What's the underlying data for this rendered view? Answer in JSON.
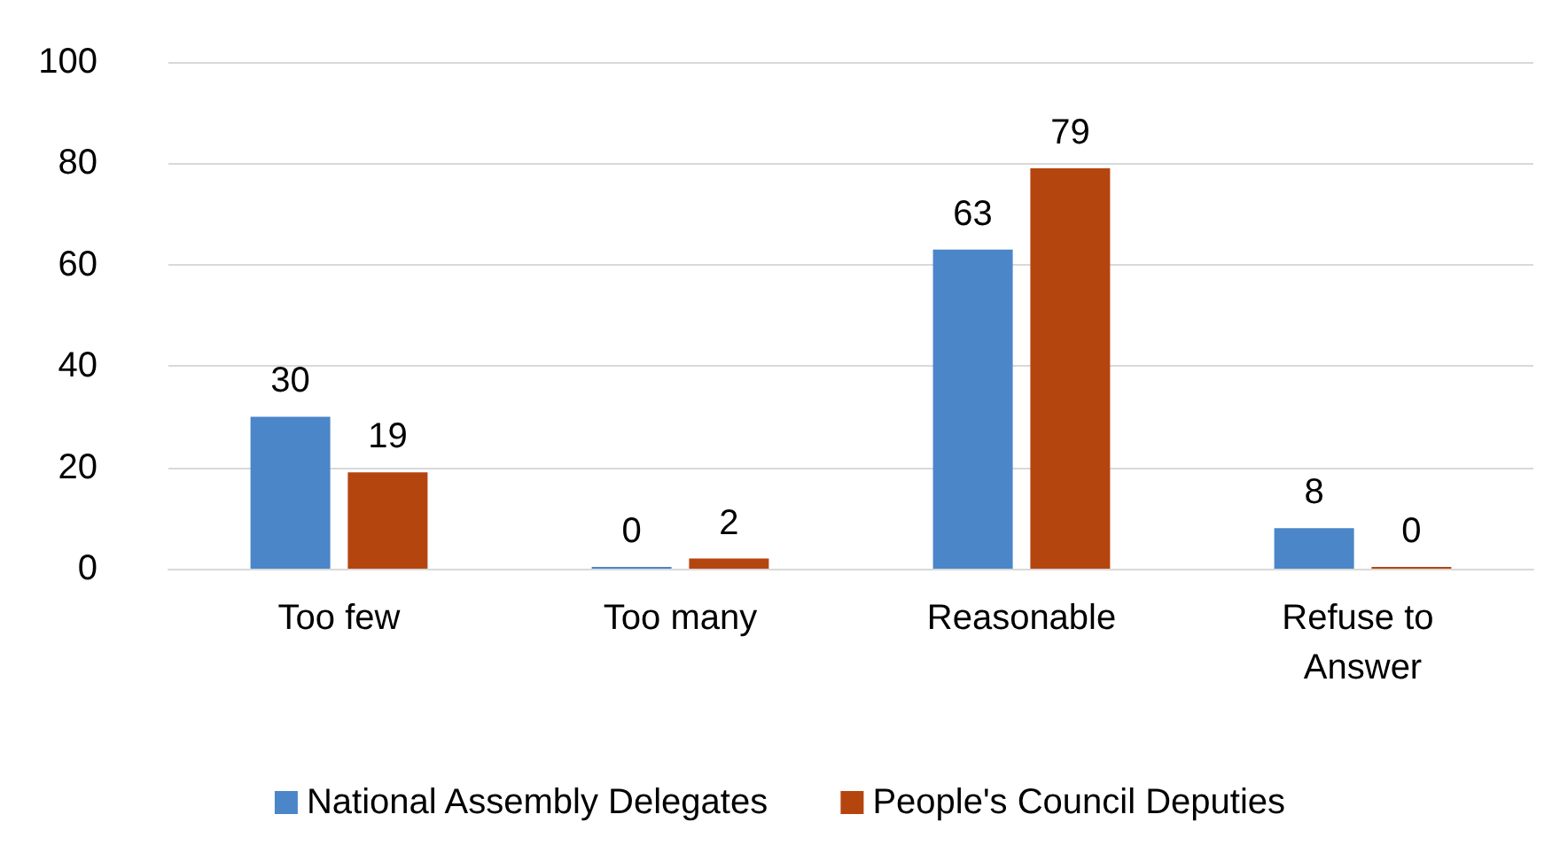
{
  "chart_data": {
    "type": "bar",
    "categories": [
      "Too few",
      "Too many",
      "Reasonable",
      "Refuse to Answer"
    ],
    "series": [
      {
        "name": "National Assembly Delegates",
        "color": "#4a86c8",
        "values": [
          30,
          0,
          63,
          8
        ]
      },
      {
        "name": "People's Council Deputies",
        "color": "#b5450f",
        "values": [
          19,
          2,
          79,
          0
        ]
      }
    ],
    "ylim": [
      0,
      100
    ],
    "yticks": [
      0,
      20,
      40,
      60,
      80,
      100
    ],
    "grid": "y",
    "legend": "bottom",
    "data_labels": true
  }
}
